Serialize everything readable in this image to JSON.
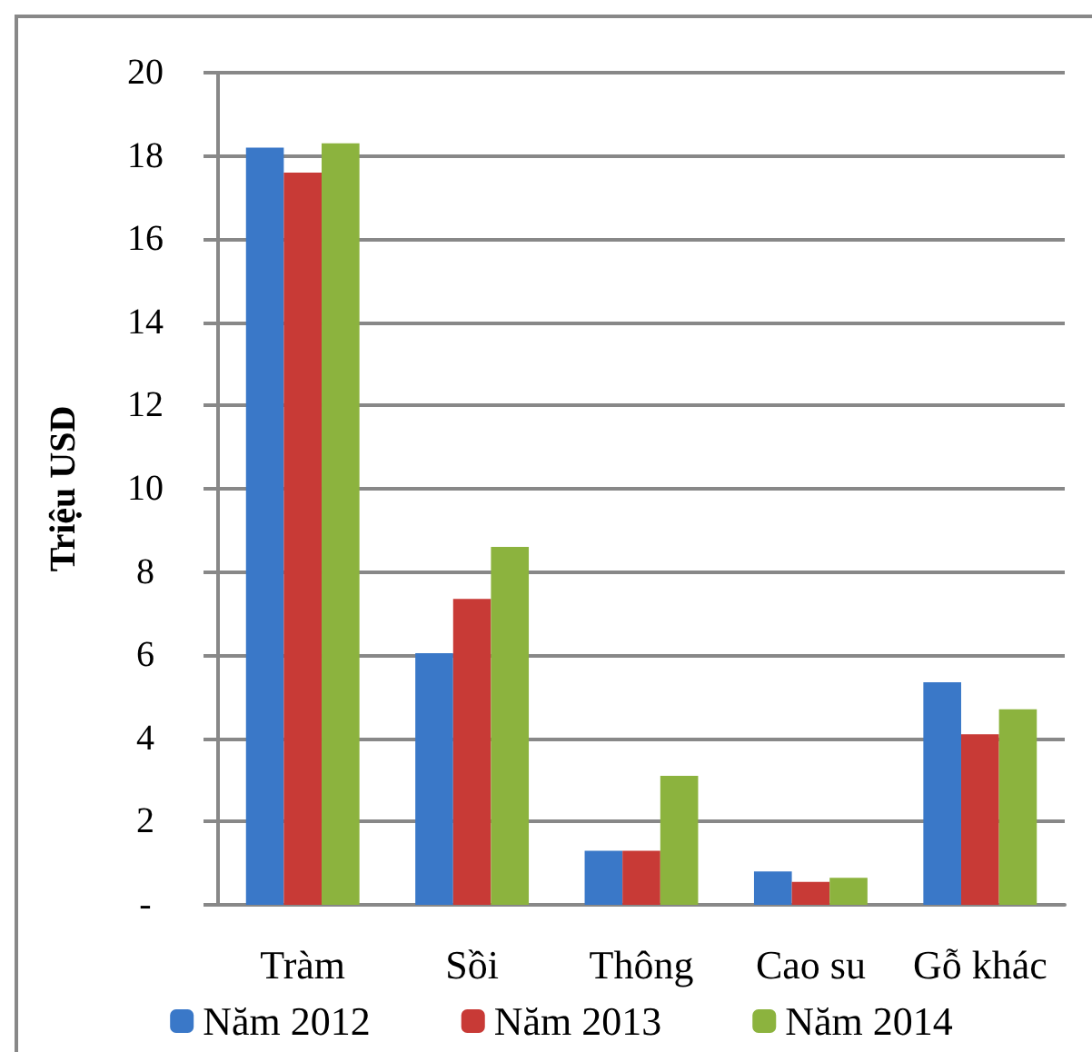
{
  "chart_data": {
    "type": "bar",
    "ylabel": "Triệu USD",
    "categories": [
      "Tràm",
      "Sồi",
      "Thông",
      "Cao su",
      "Gỗ khác"
    ],
    "series": [
      {
        "name": "Năm 2012",
        "color": "#3a78c8",
        "values": [
          18.2,
          6.05,
          1.3,
          0.8,
          5.35
        ]
      },
      {
        "name": "Năm 2013",
        "color": "#c83a36",
        "values": [
          17.6,
          7.35,
          1.3,
          0.55,
          4.1
        ]
      },
      {
        "name": "Năm 2014",
        "color": "#8cb33e",
        "values": [
          18.3,
          8.6,
          3.1,
          0.65,
          4.7
        ]
      }
    ],
    "ylim": [
      0,
      20
    ],
    "yticks": [
      {
        "value": 0,
        "label": "-"
      },
      2,
      4,
      6,
      8,
      10,
      12,
      14,
      16,
      18,
      20
    ],
    "grid": "y",
    "legend": "bottom"
  }
}
